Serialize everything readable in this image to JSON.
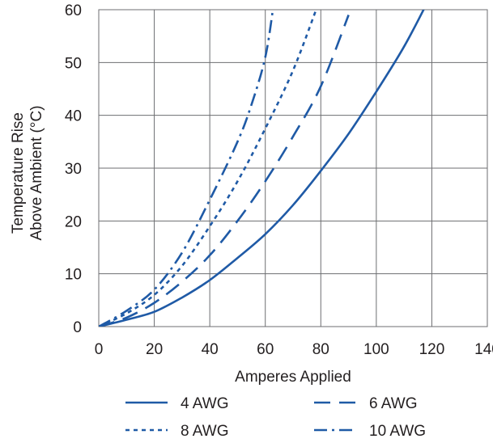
{
  "chart_data": {
    "type": "line",
    "title": "",
    "xlabel": "Amperes Applied",
    "ylabel": [
      "Temperature Rise",
      "Above Ambient (°C)"
    ],
    "xlim": [
      0,
      140
    ],
    "ylim": [
      0,
      60
    ],
    "xticks": [
      0,
      20,
      40,
      60,
      80,
      100,
      120,
      140
    ],
    "yticks": [
      0,
      10,
      20,
      30,
      40,
      50,
      60
    ],
    "grid": true,
    "legend_position": "bottom",
    "series_color": "#1f5aa6",
    "series": [
      {
        "name": "4 AWG",
        "style": "solid",
        "x": [
          0,
          10,
          20,
          30,
          40,
          50,
          60,
          70,
          80,
          90,
          100,
          110,
          118
        ],
        "y": [
          0,
          1.3,
          2.8,
          5.5,
          8.8,
          13,
          17.5,
          23,
          29.5,
          36.5,
          44.5,
          53,
          61
        ]
      },
      {
        "name": "6 AWG",
        "style": "dash",
        "x": [
          0,
          10,
          20,
          30,
          40,
          50,
          60,
          70,
          80,
          90
        ],
        "y": [
          0,
          1.7,
          4.5,
          8.5,
          13.5,
          20,
          27.5,
          36,
          45.5,
          59
        ]
      },
      {
        "name": "8 AWG",
        "style": "dot",
        "x": [
          0,
          10,
          20,
          30,
          40,
          50,
          60,
          70,
          79
        ],
        "y": [
          0,
          2.5,
          6,
          11.5,
          19,
          27.5,
          37.5,
          48.5,
          61
        ]
      },
      {
        "name": "10 AWG",
        "style": "dashdot",
        "x": [
          0,
          10,
          20,
          30,
          40,
          50,
          55,
          60,
          63
        ],
        "y": [
          0,
          3,
          7,
          14,
          24,
          35,
          42,
          51,
          61
        ]
      }
    ]
  }
}
